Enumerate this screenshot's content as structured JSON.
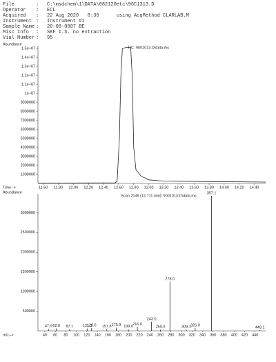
{
  "header": {
    "lines": [
      [
        "File",
        "C:\\msdchem\\1\\DATA\\082120etc\\96C1313.D"
      ],
      [
        "Operator",
        "ECL"
      ],
      [
        "Acquired",
        "22 Aug 2020   8:36      using AcqMethod CLARLAB.M"
      ],
      [
        "Instrument",
        "Instrument #1"
      ],
      [
        "Sample Name",
        "20-08-0007 BE"
      ],
      [
        "Misc Info",
        "SKF I.S. no extraction"
      ],
      [
        "Vial Number",
        "95"
      ]
    ]
  },
  "chart_data": [
    {
      "type": "line",
      "title": "TIC: 9001013.D\\data.ms",
      "y_label": "Abundance",
      "x_label": "Time-->",
      "x": [
        11.53,
        12.0,
        12.55,
        12.58,
        12.61,
        12.63,
        12.65,
        12.7,
        12.76,
        12.78,
        12.8,
        12.83,
        12.9,
        13.0,
        13.2,
        14.55
      ],
      "series": [
        {
          "name": "TIC",
          "color": "#222",
          "values": [
            50000,
            50000,
            60000,
            200000,
            5000000,
            12000000,
            15000000,
            15100000,
            15100000,
            12000000,
            4000000,
            1500000,
            800000,
            400000,
            250000,
            150000
          ]
        }
      ],
      "xlim": [
        11.53,
        14.55
      ],
      "ylim": [
        0,
        15300000
      ],
      "xticks": [
        {
          "value": 11.6,
          "label": "11.60"
        },
        {
          "value": 11.8,
          "label": "11.80"
        },
        {
          "value": 12.0,
          "label": "12.00"
        },
        {
          "value": 12.2,
          "label": "12.20"
        },
        {
          "value": 12.4,
          "label": "12.40"
        },
        {
          "value": 12.6,
          "label": "12.60"
        },
        {
          "value": 12.8,
          "label": "12.80"
        },
        {
          "value": 13.0,
          "label": "13.00"
        },
        {
          "value": 13.2,
          "label": "13.20"
        },
        {
          "value": 13.4,
          "label": "13.40"
        },
        {
          "value": 13.6,
          "label": "13.60"
        },
        {
          "value": 13.8,
          "label": "13.80"
        },
        {
          "value": 14.0,
          "label": "14.00"
        },
        {
          "value": 14.2,
          "label": "14.20"
        },
        {
          "value": 14.4,
          "label": "14.40"
        }
      ],
      "yticks": [
        1000000,
        2000000,
        3000000,
        4000000,
        5000000,
        6000000,
        7000000,
        8000000,
        9000000,
        {
          "value": 10000000,
          "label": "1e+07"
        },
        {
          "value": 11000000,
          "label": "1.1e+07"
        },
        {
          "value": 12000000,
          "label": "1.2e+07"
        },
        {
          "value": 13000000,
          "label": "1.3e+07"
        },
        {
          "value": 14000000,
          "label": "1.4e+07"
        },
        {
          "value": 15000000,
          "label": "1.5e+07"
        }
      ]
    },
    {
      "type": "bar",
      "title": "Scan 2149 (12.711 min): 9001013.D\\data.ms",
      "y_label": "Abundance",
      "x_label": "m/z-->",
      "x": [
        47,
        62,
        87.1,
        121.1,
        129,
        157.8,
        175.9,
        199,
        216,
        243,
        260,
        278,
        309.1,
        326,
        357.1,
        449.1
      ],
      "x_labels": [
        "47.0",
        "62.0",
        "87.1",
        "121.1",
        "129.0",
        "157.8",
        "175.9",
        "199.0",
        "216.0",
        "243.0",
        "260.0",
        "278.0",
        "309.1",
        "326.0",
        "357.1",
        "449.1"
      ],
      "series": [
        {
          "name": "Scan 2149",
          "color": "#222",
          "values": [
            50000,
            60000,
            40000,
            60000,
            70000,
            40000,
            80000,
            40000,
            100000,
            230000,
            30000,
            1250000,
            30000,
            70000,
            3430000,
            20000
          ]
        }
      ],
      "xlim": [
        27,
        460
      ],
      "ylim": [
        0,
        3480000
      ],
      "xticks": [
        40,
        60,
        80,
        100,
        120,
        140,
        160,
        180,
        200,
        220,
        240,
        260,
        280,
        300,
        320,
        340,
        360,
        380,
        400,
        420,
        440
      ],
      "yticks": [
        500000,
        1000000,
        1500000,
        2000000,
        2500000,
        3000000
      ]
    }
  ]
}
